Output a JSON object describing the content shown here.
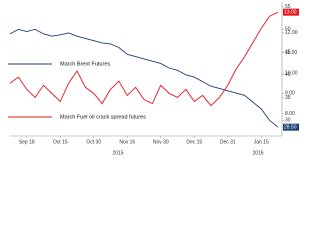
{
  "chart_data": {
    "type": "line",
    "x": [
      null,
      null,
      "Sep 18",
      null,
      null,
      null,
      "Oct 15",
      null,
      null,
      null,
      "Oct 30",
      null,
      null,
      null,
      "Nov 16",
      null,
      null,
      null,
      "Nov 30",
      null,
      null,
      null,
      "Dec 15",
      null,
      null,
      null,
      "Dec 31",
      null,
      null,
      null,
      "Jan 15",
      null,
      null
    ],
    "year_labels": [
      "2015",
      "2016"
    ],
    "series": [
      {
        "name": "March Brent Futures",
        "color": "#1f3f73",
        "values": [
          49,
          50,
          49.5,
          50,
          49,
          48.5,
          48.8,
          49.2,
          48.5,
          48,
          47.5,
          47,
          46.8,
          46,
          44.5,
          44,
          43.5,
          43,
          42.5,
          41.5,
          41,
          40,
          39.5,
          38.5,
          37.5,
          37,
          36.5,
          36,
          35.5,
          34,
          32.5,
          30,
          28.5
        ],
        "value_labels": [
          null,
          null,
          null,
          null,
          null,
          null,
          null,
          null,
          null,
          null,
          null,
          null,
          null,
          null,
          null,
          null,
          null,
          null,
          null,
          null,
          null,
          null,
          null,
          null,
          null,
          null,
          null,
          null,
          null,
          null,
          null,
          null,
          "28.50"
        ]
      },
      {
        "name": "March Fuel oil crack spread futures",
        "color": "#e8141b",
        "axis": "y2",
        "values": [
          9.5,
          9.8,
          9.2,
          8.8,
          9.4,
          9.0,
          8.6,
          9.5,
          10.1,
          9.3,
          9.0,
          8.5,
          9.2,
          9.6,
          8.9,
          9.3,
          8.7,
          8.5,
          9.4,
          9.0,
          8.8,
          9.2,
          8.6,
          8.9,
          8.4,
          8.8,
          9.4,
          10.2,
          10.8,
          11.5,
          12.2,
          12.8,
          13.0
        ],
        "value_labels": [
          null,
          null,
          null,
          null,
          null,
          null,
          null,
          null,
          null,
          null,
          null,
          null,
          null,
          null,
          null,
          null,
          null,
          null,
          null,
          null,
          null,
          null,
          null,
          null,
          null,
          null,
          null,
          null,
          null,
          null,
          null,
          null,
          "13.00"
        ]
      }
    ],
    "ylim": [
      27,
      56
    ],
    "yticks": [
      30,
      35,
      40,
      45,
      50,
      55
    ],
    "y2lim": [
      7,
      13.5
    ],
    "y2ticks": [
      {
        "value": 8,
        "label": "8.00"
      },
      {
        "value": 9,
        "label": "9.00"
      },
      {
        "value": 10,
        "label": "10.00"
      },
      {
        "value": 11,
        "label": "11.00"
      },
      {
        "value": 12,
        "label": "12.00"
      }
    ],
    "grid": false
  }
}
